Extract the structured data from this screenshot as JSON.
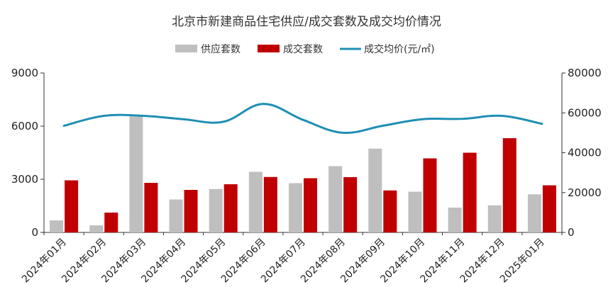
{
  "chart_data": {
    "type": "bar+line",
    "title": "北京市新建商品住宅供应/成交套数及成交均价情况",
    "categories": [
      "2024年01月",
      "2024年02月",
      "2024年03月",
      "2024年04月",
      "2024年05月",
      "2024年06月",
      "2024年07月",
      "2024年08月",
      "2024年09月",
      "2024年10月",
      "2024年11月",
      "2024年12月",
      "2025年01月"
    ],
    "series": [
      {
        "name": "供应套数",
        "kind": "bar",
        "axis": "left",
        "color": "#bfbfbf",
        "values": [
          680,
          400,
          6550,
          1860,
          2450,
          3420,
          2780,
          3740,
          4730,
          2300,
          1400,
          1530,
          2150
        ]
      },
      {
        "name": "成交套数",
        "kind": "bar",
        "axis": "left",
        "color": "#c00000",
        "values": [
          2940,
          1120,
          2800,
          2400,
          2720,
          3130,
          3060,
          3120,
          2370,
          4180,
          4500,
          5320,
          2660
        ]
      },
      {
        "name": "成交均价(元/㎡)",
        "kind": "line",
        "axis": "right",
        "color": "#1f8fb3",
        "values": [
          53500,
          58500,
          58500,
          56800,
          55500,
          64500,
          56500,
          50000,
          53500,
          56800,
          57000,
          58500,
          54500
        ]
      }
    ],
    "y_left": {
      "min": 0,
      "max": 9000,
      "ticks": [
        "0",
        "3000",
        "6000",
        "9000"
      ]
    },
    "y_right": {
      "min": 0,
      "max": 80000,
      "ticks": [
        "0",
        "20000",
        "40000",
        "60000",
        "80000"
      ]
    },
    "legend": [
      "供应套数",
      "成交套数",
      "成交均价(元/㎡)"
    ],
    "legend_position": "top-center",
    "grid": false
  }
}
